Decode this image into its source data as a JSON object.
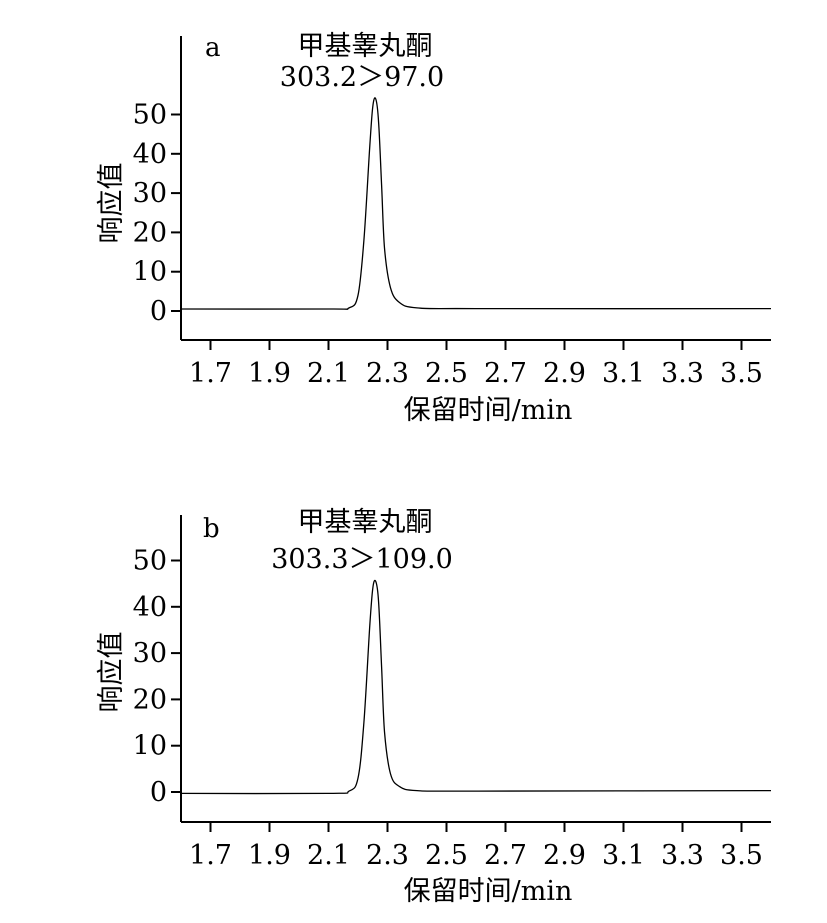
{
  "chart_data": [
    {
      "panel_label": "a",
      "type": "line",
      "title": "甲基睾丸酮",
      "subtitle": "303.2＞97.0",
      "xlabel": "保留时间/min",
      "ylabel": "响应值",
      "xlim": [
        1.6,
        3.6
      ],
      "ylim": [
        -7,
        70
      ],
      "x_ticks": [
        "1.7",
        "1.9",
        "2.1",
        "2.3",
        "2.5",
        "2.7",
        "2.9",
        "3.1",
        "3.3",
        "3.5"
      ],
      "y_ticks": [
        "0",
        "10",
        "20",
        "30",
        "40",
        "50"
      ],
      "grid": false,
      "series": [
        {
          "x": [
            1.6,
            2.1,
            2.17,
            2.2,
            2.22,
            2.24,
            2.25,
            2.26,
            2.27,
            2.28,
            2.29,
            2.31,
            2.34,
            2.4,
            2.6,
            3.6
          ],
          "y": [
            0.5,
            0.5,
            0.8,
            4,
            18,
            42,
            52,
            54,
            48,
            32,
            16,
            6,
            2.2,
            0.8,
            0.6,
            0.6
          ]
        }
      ]
    },
    {
      "panel_label": "b",
      "type": "line",
      "title": "甲基睾丸酮",
      "subtitle": "303.3＞109.0",
      "xlabel": "保留时间/min",
      "ylabel": "响应值",
      "xlim": [
        1.6,
        3.6
      ],
      "ylim": [
        -7,
        60
      ],
      "x_ticks": [
        "1.7",
        "1.9",
        "2.1",
        "2.3",
        "2.5",
        "2.7",
        "2.9",
        "3.1",
        "3.3",
        "3.5"
      ],
      "y_ticks": [
        "0",
        "10",
        "20",
        "30",
        "40",
        "50"
      ],
      "grid": false,
      "series": [
        {
          "x": [
            1.6,
            2.1,
            2.17,
            2.2,
            2.22,
            2.24,
            2.25,
            2.26,
            2.27,
            2.28,
            2.29,
            2.31,
            2.34,
            2.4,
            2.6,
            3.6
          ],
          "y": [
            -0.3,
            -0.3,
            0.2,
            3,
            15,
            36,
            44,
            45.5,
            41,
            27,
            13,
            4,
            1.2,
            0.3,
            0.2,
            0.3
          ]
        }
      ]
    }
  ]
}
